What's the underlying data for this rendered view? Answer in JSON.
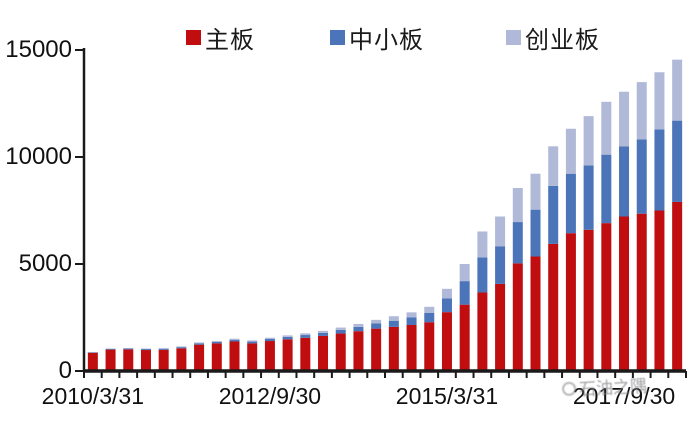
{
  "chart_data": {
    "type": "bar",
    "stacked": true,
    "title": "",
    "xlabel": "",
    "ylabel": "",
    "grid": false,
    "legend_position": "top",
    "ylim": [
      0,
      15000
    ],
    "yticks": [
      0,
      5000,
      10000,
      15000
    ],
    "ytick_labels": [
      "0",
      "5000",
      "10000",
      "15000"
    ],
    "xtick_labels": [
      "2010/3/31",
      "2012/9/30",
      "2015/3/31",
      "2017/9/30"
    ],
    "xtick_label_indices": [
      0,
      10,
      20,
      30
    ],
    "categories": [
      "2010/3/31",
      "2010/6/30",
      "2010/9/30",
      "2010/12/31",
      "2011/3/31",
      "2011/6/30",
      "2011/9/30",
      "2011/12/31",
      "2012/3/31",
      "2012/6/30",
      "2012/9/30",
      "2012/12/31",
      "2013/3/31",
      "2013/6/30",
      "2013/9/30",
      "2013/12/31",
      "2014/3/31",
      "2014/6/30",
      "2014/9/30",
      "2014/12/31",
      "2015/3/31",
      "2015/6/30",
      "2015/9/30",
      "2015/12/31",
      "2016/3/31",
      "2016/6/30",
      "2016/9/30",
      "2016/12/31",
      "2017/3/31",
      "2017/6/30",
      "2017/9/30",
      "2017/12/31",
      "2018/3/31",
      "2018/6/30"
    ],
    "series": [
      {
        "name": "主板",
        "color": "#c00d10",
        "values": [
          850,
          1000,
          1010,
          980,
          990,
          1060,
          1230,
          1290,
          1380,
          1290,
          1400,
          1480,
          1550,
          1640,
          1750,
          1860,
          1980,
          2060,
          2150,
          2280,
          2750,
          3100,
          3670,
          4070,
          5030,
          5350,
          5940,
          6440,
          6600,
          6910,
          7220,
          7350,
          7500,
          7900
        ]
      },
      {
        "name": "中小板",
        "color": "#4c74b9",
        "values": [
          30,
          35,
          40,
          45,
          50,
          55,
          65,
          70,
          80,
          85,
          95,
          115,
          130,
          145,
          170,
          200,
          240,
          290,
          350,
          430,
          640,
          1100,
          1640,
          1760,
          1930,
          2190,
          2710,
          2780,
          3010,
          3200,
          3280,
          3470,
          3790,
          3800
        ]
      },
      {
        "name": "创业板",
        "color": "#b0bad8",
        "values": [
          10,
          15,
          20,
          25,
          30,
          35,
          40,
          45,
          50,
          55,
          60,
          70,
          80,
          90,
          110,
          140,
          170,
          210,
          240,
          290,
          450,
          800,
          1210,
          1390,
          1590,
          1680,
          1850,
          2100,
          2300,
          2470,
          2550,
          2680,
          2670,
          2850
        ]
      }
    ]
  },
  "legend": {
    "items": [
      {
        "label": "主板"
      },
      {
        "label": "中小板"
      },
      {
        "label": "创业板"
      }
    ]
  },
  "watermark": {
    "text": "石油之隅"
  },
  "colors": {
    "axis": "#1a1a1a",
    "background": "#ffffff"
  }
}
